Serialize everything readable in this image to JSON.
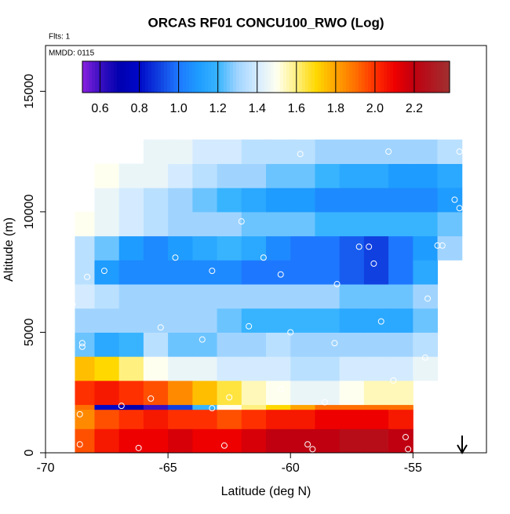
{
  "chart_data": {
    "type": "heatmap",
    "title": "ORCAS RF01 CONCU100_RWO (Log)",
    "annotations": [
      "Flts: 1",
      "MMDD: 0115"
    ],
    "xlabel": "Latitude (deg N)",
    "ylabel": "Altitude (m)",
    "xlim": [
      -70,
      -52
    ],
    "ylim": [
      0,
      16900
    ],
    "xticks": [
      -70,
      -65,
      -60,
      -55
    ],
    "yticks": [
      0,
      5000,
      10000,
      15000
    ],
    "x_edges": [
      -68.8,
      -68,
      -67,
      -66,
      -65,
      -64,
      -63,
      -62,
      -61,
      -60,
      -59,
      -58,
      -57,
      -56,
      -55,
      -54,
      -53
    ],
    "y_edges": [
      0,
      1000,
      1800,
      2000,
      3000,
      4000,
      5000,
      6000,
      7000,
      8000,
      9000,
      10000,
      11000,
      12000,
      13000
    ],
    "values": [
      [
        1.95,
        2.05,
        2.1,
        2.1,
        2.15,
        2.1,
        2.1,
        2.15,
        2.2,
        2.2,
        2.2,
        2.25,
        2.25,
        2.2,
        null,
        null
      ],
      [
        1.85,
        1.95,
        2.0,
        2.05,
        2.0,
        2.0,
        1.95,
        2.0,
        2.05,
        2.05,
        2.1,
        2.1,
        2.1,
        2.05,
        null,
        null
      ],
      [
        1.9,
        0.8,
        0.7,
        0.6,
        0.9,
        1.2,
        1.5,
        1.6,
        1.7,
        1.8,
        1.9,
        1.9,
        1.9,
        1.9,
        null,
        null
      ],
      [
        2.0,
        2.05,
        2.0,
        1.95,
        1.85,
        1.75,
        1.65,
        1.55,
        1.5,
        1.45,
        1.45,
        1.5,
        1.55,
        1.55,
        null,
        null
      ],
      [
        1.75,
        1.7,
        1.6,
        1.5,
        1.45,
        1.45,
        1.4,
        1.4,
        1.4,
        1.35,
        1.35,
        1.4,
        1.4,
        1.4,
        1.45,
        null
      ],
      [
        1.25,
        1.15,
        1.2,
        1.35,
        1.25,
        1.25,
        1.3,
        1.3,
        1.35,
        1.3,
        1.3,
        1.3,
        1.3,
        1.3,
        1.35,
        null
      ],
      [
        1.3,
        1.3,
        1.3,
        1.3,
        1.3,
        1.3,
        1.25,
        1.2,
        1.2,
        1.2,
        1.2,
        1.15,
        1.15,
        1.15,
        1.25,
        null
      ],
      [
        1.4,
        1.35,
        1.3,
        1.3,
        1.3,
        1.3,
        1.3,
        1.3,
        1.3,
        1.3,
        1.3,
        1.25,
        1.25,
        1.25,
        1.3,
        null
      ],
      [
        1.35,
        1.1,
        1.05,
        1.05,
        1.05,
        1.05,
        1.05,
        1.0,
        1.0,
        1.0,
        1.0,
        0.95,
        0.9,
        1.0,
        1.15,
        null
      ],
      [
        1.35,
        1.25,
        1.1,
        1.05,
        1.1,
        1.15,
        1.2,
        1.15,
        1.05,
        1.0,
        1.0,
        0.95,
        0.9,
        1.0,
        1.1,
        1.3
      ],
      [
        1.5,
        1.45,
        1.4,
        1.35,
        1.3,
        1.3,
        1.3,
        1.25,
        1.25,
        1.25,
        1.2,
        1.2,
        1.2,
        1.2,
        1.2,
        1.25
      ],
      [
        null,
        1.45,
        1.4,
        1.35,
        1.3,
        1.25,
        1.2,
        1.15,
        1.1,
        1.1,
        1.05,
        1.05,
        1.05,
        1.05,
        1.05,
        1.1
      ],
      [
        null,
        1.5,
        1.45,
        1.45,
        1.4,
        1.35,
        1.3,
        1.3,
        1.25,
        1.25,
        1.2,
        1.15,
        1.15,
        1.1,
        1.1,
        1.15
      ],
      [
        null,
        null,
        null,
        1.45,
        1.45,
        1.4,
        1.4,
        1.35,
        1.35,
        1.35,
        1.3,
        1.3,
        1.3,
        1.3,
        1.3,
        1.35
      ]
    ],
    "points": {
      "x": [
        -68.6,
        -66.2,
        -62.7,
        -59.3,
        -59.1,
        -55.2,
        -55.3,
        -68.6,
        -66.9,
        -65.7,
        -63.2,
        -62.5,
        -60.4,
        -58.6,
        -55.8,
        -54.5,
        -68.9,
        -68.5,
        -68.5,
        -65.3,
        -63.6,
        -61.7,
        -60.0,
        -58.2,
        -56.3,
        -54.4,
        -68.3,
        -67.6,
        -64.7,
        -63.2,
        -61.1,
        -60.4,
        -58.1,
        -57.2,
        -56.8,
        -56.6,
        -54.0,
        -53.8,
        -62.0,
        -53.3,
        -53.1,
        -59.6,
        -56.0,
        -53.1
      ],
      "y": [
        350,
        200,
        300,
        350,
        150,
        150,
        650,
        1600,
        1950,
        2250,
        1850,
        2300,
        2650,
        2100,
        3000,
        3950,
        6150,
        4550,
        4400,
        5200,
        4700,
        5250,
        5000,
        4550,
        5450,
        6400,
        7300,
        7550,
        8100,
        7550,
        8100,
        7400,
        7000,
        8550,
        8550,
        7850,
        8600,
        8600,
        9600,
        10500,
        10150,
        12400,
        12500,
        12500
      ]
    },
    "colorbar_lim": [
      0.51,
      2.38
    ],
    "colorbar_ticks": [
      0.6,
      0.8,
      {
        "value": 1,
        "label": "1.0"
      },
      1.2,
      1.4,
      1.6,
      1.8,
      {
        "value": 2,
        "label": "2.0"
      },
      2.2
    ],
    "colorscale": [
      [
        0.51,
        "#8a20e0"
      ],
      [
        0.6,
        "#3a10c0"
      ],
      [
        0.7,
        "#0000b0"
      ],
      [
        0.8,
        "#0008c8"
      ],
      [
        0.9,
        "#1040e0"
      ],
      [
        1.0,
        "#1e78ff"
      ],
      [
        1.1,
        "#1e9cff"
      ],
      [
        1.2,
        "#38b4ff"
      ],
      [
        1.3,
        "#a0d4ff"
      ],
      [
        1.4,
        "#d4ebff"
      ],
      [
        1.5,
        "#fffff0"
      ],
      [
        1.6,
        "#fff080"
      ],
      [
        1.7,
        "#ffd800"
      ],
      [
        1.8,
        "#ffa400"
      ],
      [
        1.9,
        "#ff7000"
      ],
      [
        2.0,
        "#ff3000"
      ],
      [
        2.1,
        "#ee0000"
      ],
      [
        2.2,
        "#c00010"
      ],
      [
        2.38,
        "#a03030"
      ]
    ]
  }
}
